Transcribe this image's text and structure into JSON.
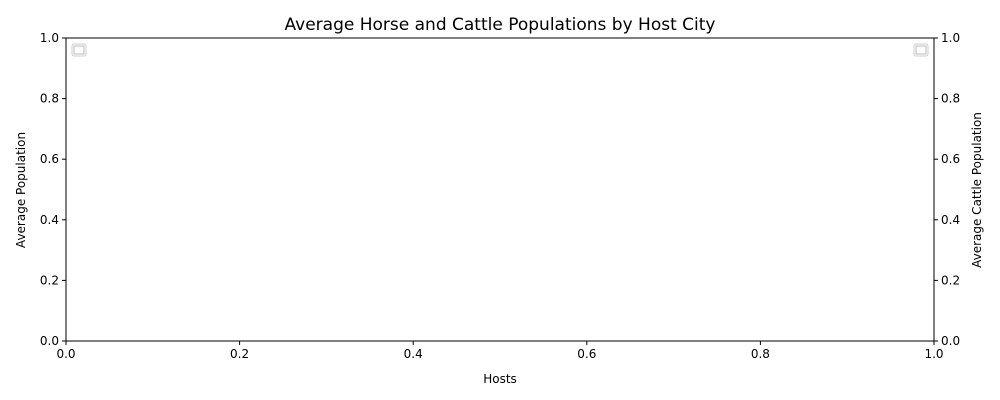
{
  "chart_data": {
    "type": "bar",
    "title": "Average Horse and Cattle Populations by Host City",
    "xlabel": "Hosts",
    "ylabel": "Average Population",
    "y2label": "Average Cattle Population",
    "xlim": [
      0,
      1
    ],
    "ylim": [
      0,
      1
    ],
    "y2lim": [
      0,
      1
    ],
    "x_ticks": [
      "0.0",
      "0.2",
      "0.4",
      "0.6",
      "0.8",
      "1.0"
    ],
    "y_ticks": [
      "0.0",
      "0.2",
      "0.4",
      "0.6",
      "0.8",
      "1.0"
    ],
    "y2_ticks": [
      "0.0",
      "0.2",
      "0.4",
      "0.6",
      "0.8",
      "1.0"
    ],
    "categories": [],
    "series": [],
    "grid": false,
    "legend_left": "upper left (empty)",
    "legend_right": "upper right (empty)"
  }
}
